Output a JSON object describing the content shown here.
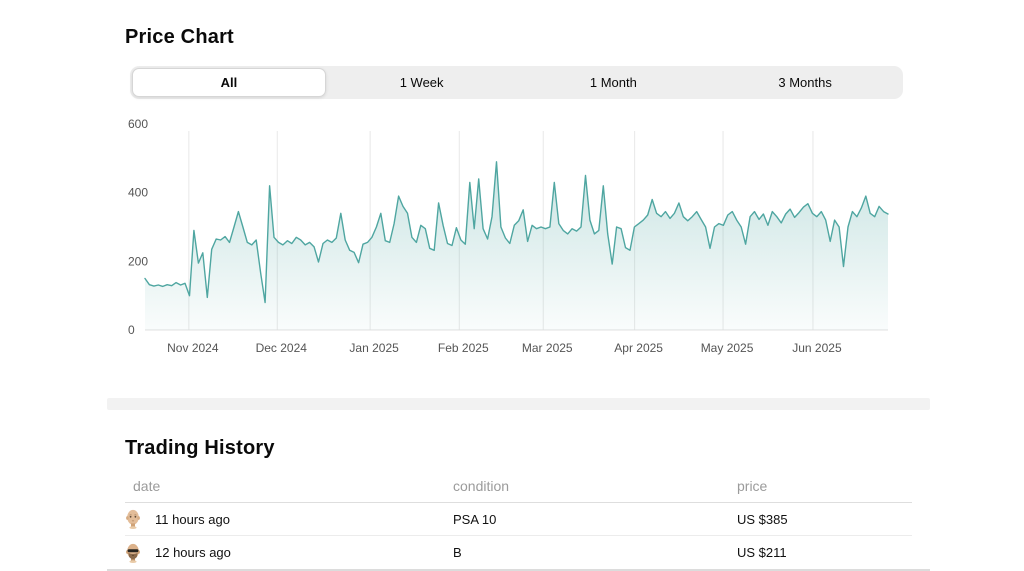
{
  "price_chart": {
    "title": "Price Chart",
    "tabs": [
      {
        "label": "All",
        "selected": true
      },
      {
        "label": "1 Week",
        "selected": false
      },
      {
        "label": "1 Month",
        "selected": false
      },
      {
        "label": "3 Months",
        "selected": false
      }
    ]
  },
  "chart_data": {
    "type": "area",
    "title": "Price Chart",
    "xlabel": "",
    "ylabel": "",
    "ylim": [
      0,
      600
    ],
    "y_ticks": [
      0,
      200,
      400,
      600
    ],
    "grid": "vertical-month-lines",
    "legend": "none",
    "line_color": "#4fa6a1",
    "fill_top": "rgba(79,166,161,0.30)",
    "fill_bottom": "rgba(79,166,161,0.03)",
    "grid_color": "#e8e8e8",
    "axis_text_color": "#555555",
    "x_labels": [
      {
        "label": "Nov 2024",
        "f": 0.059
      },
      {
        "label": "Dec 2024",
        "f": 0.178
      },
      {
        "label": "Jan 2025",
        "f": 0.303
      },
      {
        "label": "Feb 2025",
        "f": 0.423
      },
      {
        "label": "Mar 2025",
        "f": 0.536
      },
      {
        "label": "Apr 2025",
        "f": 0.659
      },
      {
        "label": "May 2025",
        "f": 0.778
      },
      {
        "label": "Jun 2025",
        "f": 0.899
      }
    ],
    "values": [
      150,
      132,
      128,
      131,
      127,
      132,
      129,
      138,
      131,
      136,
      100,
      290,
      195,
      225,
      95,
      235,
      265,
      262,
      272,
      255,
      300,
      345,
      300,
      255,
      248,
      262,
      165,
      80,
      420,
      270,
      255,
      248,
      260,
      252,
      270,
      262,
      248,
      255,
      242,
      198,
      252,
      262,
      255,
      268,
      340,
      262,
      232,
      226,
      196,
      250,
      255,
      270,
      300,
      340,
      260,
      255,
      310,
      390,
      360,
      340,
      270,
      255,
      305,
      295,
      238,
      232,
      370,
      305,
      252,
      246,
      298,
      262,
      250,
      430,
      295,
      440,
      295,
      265,
      330,
      490,
      300,
      268,
      252,
      305,
      318,
      350,
      258,
      305,
      295,
      300,
      295,
      300,
      430,
      310,
      290,
      280,
      295,
      288,
      300,
      450,
      320,
      280,
      290,
      420,
      280,
      192,
      300,
      295,
      240,
      232,
      300,
      310,
      320,
      335,
      380,
      340,
      330,
      345,
      325,
      340,
      370,
      330,
      318,
      330,
      345,
      322,
      300,
      238,
      300,
      310,
      305,
      335,
      345,
      320,
      300,
      250,
      330,
      345,
      322,
      338,
      305,
      345,
      330,
      312,
      338,
      352,
      328,
      342,
      358,
      368,
      340,
      330,
      345,
      320,
      258,
      320,
      300,
      185,
      300,
      345,
      330,
      355,
      390,
      340,
      330,
      360,
      345,
      338
    ]
  },
  "trading_history": {
    "title": "Trading History",
    "columns": {
      "date": "date",
      "condition": "condition",
      "price": "price"
    },
    "rows": [
      {
        "avatar": "old-man-avatar",
        "date": "11 hours ago",
        "condition": "PSA 10",
        "price": "US $385"
      },
      {
        "avatar": "sunglasses-man-avatar",
        "date": "12 hours ago",
        "condition": "B",
        "price": "US $211"
      }
    ]
  }
}
